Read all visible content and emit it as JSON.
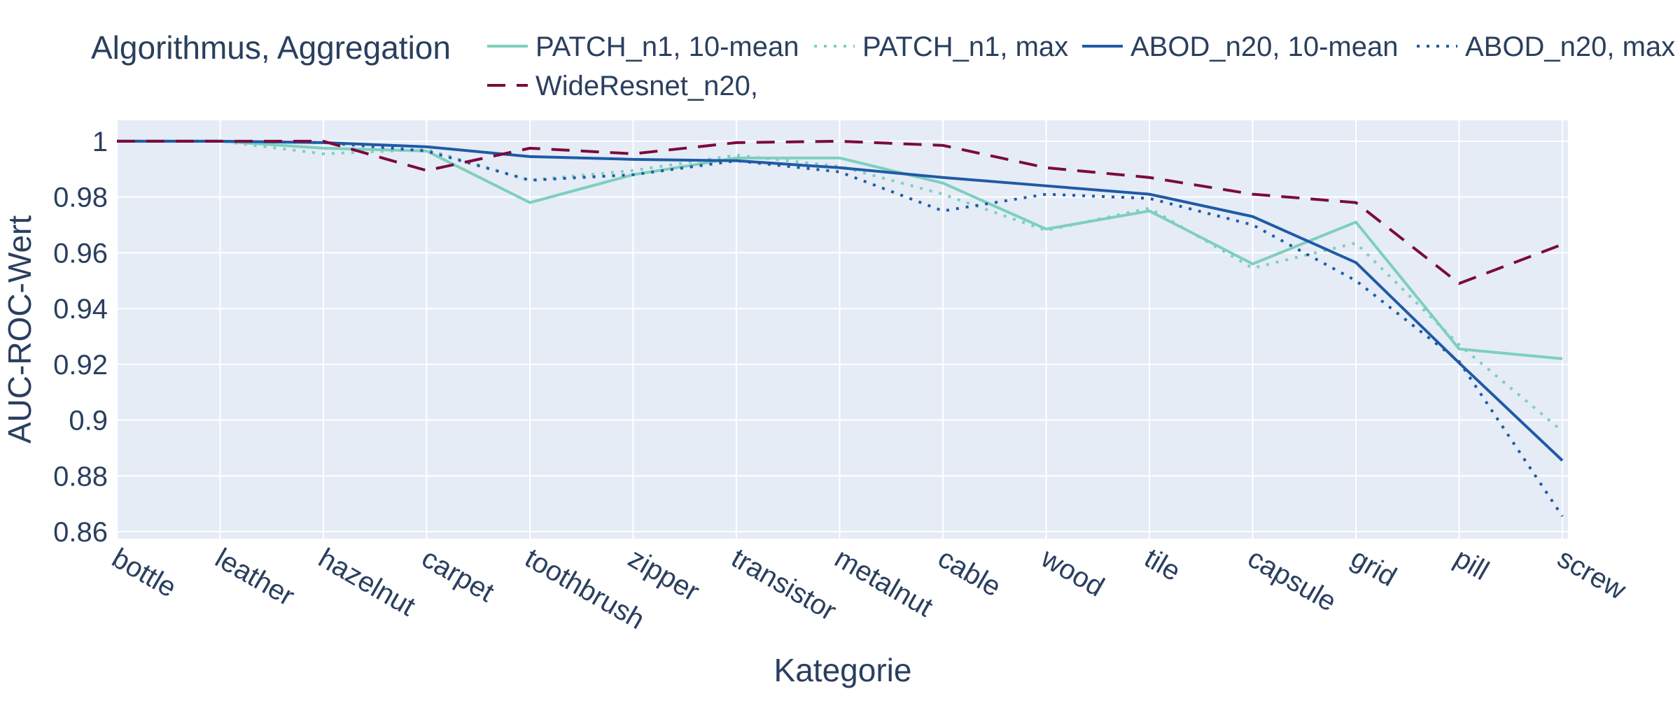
{
  "chart_data": {
    "type": "line",
    "xlabel": "Kategorie",
    "ylabel": "AUC-ROC-Wert",
    "legend_title": "Algorithmus, Aggregation",
    "legend_position": "top",
    "grid": true,
    "ylim": [
      0.8575,
      1.0075
    ],
    "y_ticks": [
      0.86,
      0.88,
      0.9,
      0.92,
      0.94,
      0.96,
      0.98,
      1
    ],
    "y_tick_labels": [
      "0.86",
      "0.88",
      "0.9",
      "0.92",
      "0.94",
      "0.96",
      "0.98",
      "1"
    ],
    "categories": [
      "bottle",
      "leather",
      "hazelnut",
      "carpet",
      "toothbrush",
      "zipper",
      "transistor",
      "metalnut",
      "cable",
      "wood",
      "tile",
      "capsule",
      "grid",
      "pill",
      "screw"
    ],
    "series": [
      {
        "name": "PATCH_n1, 10-mean",
        "color": "#7dcfbe",
        "dash": "solid",
        "values": [
          1.0,
          1.0,
          0.9975,
          0.9965,
          0.978,
          0.988,
          0.994,
          0.994,
          0.985,
          0.9685,
          0.975,
          0.956,
          0.971,
          0.9255,
          0.922
        ]
      },
      {
        "name": "PATCH_n1, max",
        "color": "#7dcfbe",
        "dash": "dot",
        "values": [
          1.0,
          1.0,
          0.9955,
          0.997,
          0.986,
          0.9895,
          0.995,
          0.991,
          0.981,
          0.968,
          0.976,
          0.9545,
          0.9635,
          0.927,
          0.896
        ]
      },
      {
        "name": "ABOD_n20, 10-mean",
        "color": "#1f5aa6",
        "dash": "solid",
        "values": [
          1.0,
          1.0,
          0.9995,
          0.998,
          0.9945,
          0.9935,
          0.993,
          0.9905,
          0.987,
          0.984,
          0.981,
          0.973,
          0.9565,
          0.9205,
          0.8855
        ]
      },
      {
        "name": "ABOD_n20, max",
        "color": "#1f5aa6",
        "dash": "dot",
        "values": [
          1.0,
          1.0,
          0.9995,
          0.9965,
          0.986,
          0.988,
          0.993,
          0.989,
          0.975,
          0.981,
          0.9795,
          0.97,
          0.95,
          0.921,
          0.8655
        ]
      },
      {
        "name": "WideResnet_n20,",
        "color": "#7b0a3e",
        "dash": "dash",
        "values": [
          1.0,
          1.0,
          1.0,
          0.9895,
          0.9975,
          0.9955,
          0.9995,
          1.0,
          0.9985,
          0.9905,
          0.987,
          0.981,
          0.978,
          0.949,
          0.963
        ]
      }
    ]
  }
}
